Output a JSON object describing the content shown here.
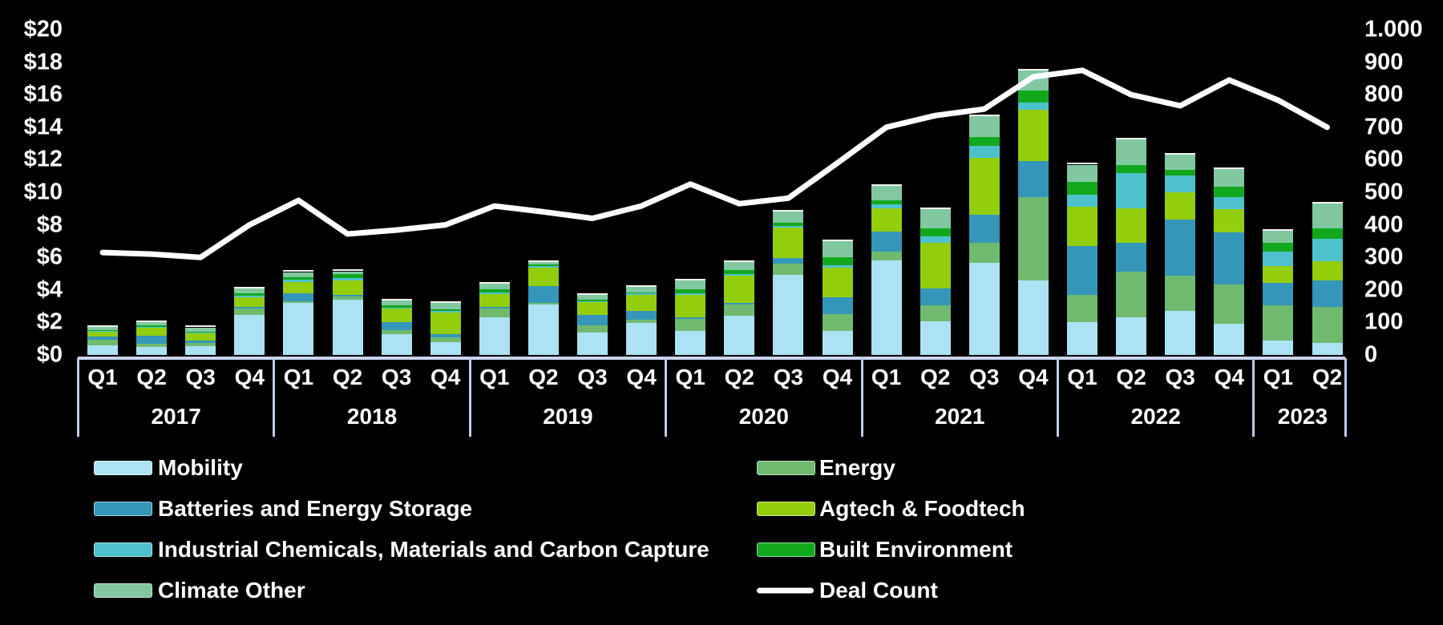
{
  "chart_data": {
    "type": "bar",
    "subtype": "stacked-bar-with-line",
    "title": "",
    "left_axis": {
      "min": 0,
      "max": 20,
      "step": 2,
      "ticks": [
        "$0",
        "$2",
        "$4",
        "$6",
        "$8",
        "$10",
        "$12",
        "$14",
        "$16",
        "$18",
        "$20"
      ]
    },
    "right_axis": {
      "min": 0,
      "max": 1000,
      "step": 100,
      "ticks": [
        "0",
        "100",
        "200",
        "300",
        "400",
        "500",
        "600",
        "700",
        "800",
        "900",
        "1.000"
      ]
    },
    "groups": [
      {
        "year": "2017",
        "quarters": [
          "Q1",
          "Q2",
          "Q3",
          "Q4"
        ]
      },
      {
        "year": "2018",
        "quarters": [
          "Q1",
          "Q2",
          "Q3",
          "Q4"
        ]
      },
      {
        "year": "2019",
        "quarters": [
          "Q1",
          "Q2",
          "Q3",
          "Q4"
        ]
      },
      {
        "year": "2020",
        "quarters": [
          "Q1",
          "Q2",
          "Q3",
          "Q4"
        ]
      },
      {
        "year": "2021",
        "quarters": [
          "Q1",
          "Q2",
          "Q3",
          "Q4"
        ]
      },
      {
        "year": "2022",
        "quarters": [
          "Q1",
          "Q2",
          "Q3",
          "Q4"
        ]
      },
      {
        "year": "2023",
        "quarters": [
          "Q1",
          "Q2"
        ]
      }
    ],
    "series": [
      {
        "name": "Mobility",
        "key": "mobility",
        "color": "#ADE2F4",
        "values": [
          0.6,
          0.5,
          0.55,
          2.45,
          3.2,
          3.4,
          1.3,
          0.8,
          2.3,
          3.1,
          1.4,
          1.95,
          1.5,
          2.4,
          4.95,
          1.5,
          5.8,
          2.05,
          5.65,
          4.6,
          2.0,
          2.3,
          2.7,
          1.9,
          0.9,
          0.75
        ]
      },
      {
        "name": "Energy",
        "key": "energy",
        "color": "#6FBA6F",
        "values": [
          0.33,
          0.2,
          0.2,
          0.4,
          0.1,
          0.2,
          0.25,
          0.3,
          0.55,
          0.1,
          0.4,
          0.2,
          0.7,
          0.7,
          0.65,
          1.0,
          0.55,
          1.0,
          1.25,
          5.1,
          1.7,
          2.8,
          2.2,
          2.45,
          2.15,
          2.2
        ]
      },
      {
        "name": "Batteries and Energy Storage",
        "key": "batteries",
        "color": "#3496B8",
        "values": [
          0.2,
          0.5,
          0.15,
          0.1,
          0.5,
          0.1,
          0.45,
          0.2,
          0.1,
          1.05,
          0.65,
          0.55,
          0.1,
          0.1,
          0.35,
          1.05,
          1.25,
          1.05,
          1.7,
          2.2,
          3.0,
          1.8,
          3.45,
          3.2,
          1.4,
          1.65
        ]
      },
      {
        "name": "Agtech & Foodtech",
        "key": "agtech",
        "color": "#93CE0C",
        "values": [
          0.3,
          0.5,
          0.45,
          0.6,
          0.7,
          0.9,
          0.85,
          1.3,
          0.8,
          1.1,
          0.8,
          1.0,
          1.4,
          1.7,
          1.9,
          1.8,
          1.4,
          2.8,
          3.5,
          3.2,
          2.4,
          2.1,
          1.65,
          1.4,
          1.0,
          1.15
        ]
      },
      {
        "name": "Industrial Chemicals, Materials and Carbon Capture",
        "key": "industrial",
        "color": "#4DC2CC",
        "values": [
          0.05,
          0.05,
          0.05,
          0.08,
          0.12,
          0.15,
          0.05,
          0.1,
          0.1,
          0.1,
          0.05,
          0.1,
          0.1,
          0.1,
          0.1,
          0.15,
          0.25,
          0.4,
          0.75,
          0.4,
          0.75,
          2.2,
          1.05,
          0.75,
          0.9,
          1.4
        ]
      },
      {
        "name": "Built Environment",
        "key": "built",
        "color": "#12A81E",
        "values": [
          0.05,
          0.08,
          0.05,
          0.15,
          0.18,
          0.25,
          0.15,
          0.1,
          0.2,
          0.1,
          0.1,
          0.05,
          0.25,
          0.2,
          0.2,
          0.5,
          0.25,
          0.5,
          0.55,
          0.75,
          0.8,
          0.5,
          0.35,
          0.65,
          0.55,
          0.65
        ]
      },
      {
        "name": "Climate Other",
        "key": "climate_other",
        "color": "#81C8A0",
        "values": [
          0.2,
          0.2,
          0.25,
          0.3,
          0.3,
          0.15,
          0.3,
          0.4,
          0.35,
          0.15,
          0.3,
          0.35,
          0.55,
          0.5,
          0.65,
          1.0,
          0.9,
          1.15,
          1.3,
          1.25,
          1.05,
          1.55,
          0.9,
          1.1,
          0.75,
          1.5
        ]
      }
    ],
    "deal_count": {
      "name": "Deal Count",
      "color": "#FFFFFF",
      "values": [
        315,
        310,
        300,
        400,
        475,
        372,
        384,
        400,
        458,
        440,
        420,
        458,
        525,
        465,
        482,
        590,
        700,
        736,
        756,
        855,
        875,
        800,
        766,
        845,
        783,
        700
      ]
    },
    "legend_position": "bottom"
  },
  "legend": {
    "columns": [
      [
        {
          "label": "Mobility",
          "series": "mobility"
        },
        {
          "label": "Batteries and Energy Storage",
          "series": "batteries"
        },
        {
          "label": "Industrial Chemicals, Materials and Carbon Capture",
          "series": "industrial"
        },
        {
          "label": "Climate Other",
          "series": "climate_other"
        }
      ],
      [
        {
          "label": "Energy",
          "series": "energy"
        },
        {
          "label": "Agtech & Foodtech",
          "series": "agtech"
        },
        {
          "label": "Built Environment",
          "series": "built"
        },
        {
          "label": "Deal Count",
          "series": "deal_count"
        }
      ]
    ]
  },
  "style_colors": {
    "background": "#000000",
    "axis_structure": "#C9D5F0",
    "group_divider": "#BCCBEB",
    "text": "#FFFFFF",
    "deal_count_line": "#FFFFFF"
  }
}
